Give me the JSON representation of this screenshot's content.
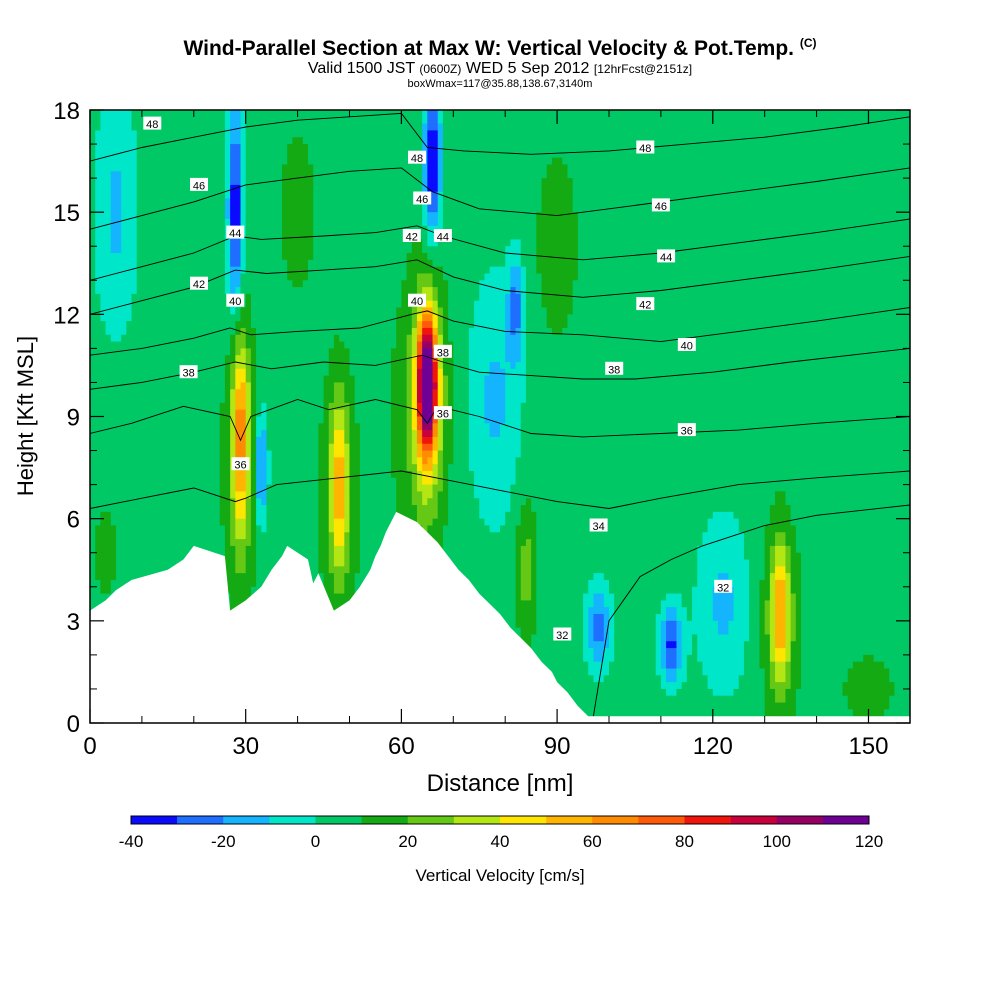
{
  "title": {
    "main": "Wind-Parallel Section at Max W: Vertical Velocity & Pot.Temp.",
    "mark": "(C)",
    "valid": "Valid 1500 JST",
    "z": "(0600Z)",
    "date": "WED 5 Sep 2012",
    "fcst": "[12hrFcst@2151z]",
    "box": "boxWmax=117@35.88,138.67,3140m"
  },
  "chart_data": {
    "type": "heatmap",
    "xlabel": "Distance [nm]",
    "ylabel": "Height [Kft MSL]",
    "xlim": [
      0,
      158
    ],
    "ylim": [
      0,
      18
    ],
    "x_ticks": [
      "0",
      "30",
      "60",
      "90",
      "120",
      "150"
    ],
    "y_ticks": [
      "0",
      "3",
      "6",
      "9",
      "12",
      "15",
      "18"
    ],
    "colorbar": {
      "label": "Vertical Velocity [cm/s]",
      "levels": [
        -40,
        -30,
        -20,
        -10,
        0,
        10,
        20,
        30,
        40,
        50,
        60,
        70,
        80,
        90,
        100,
        110,
        120
      ],
      "tick_labels": [
        "-40",
        "-20",
        "0",
        "20",
        "40",
        "60",
        "80",
        "100",
        "120"
      ],
      "colors": [
        "#0a0aff",
        "#1e6eff",
        "#14b4ff",
        "#00e6c8",
        "#00c864",
        "#14aa14",
        "#64c814",
        "#b4e614",
        "#ffe600",
        "#ffb400",
        "#ff8c00",
        "#ff5a0a",
        "#f0140a",
        "#c8003c",
        "#960064",
        "#6e0096"
      ]
    },
    "background_value": 5,
    "velocity_features": [
      {
        "x": 29,
        "y": 8.5,
        "sx": 1.6,
        "sy": 2.8,
        "value": 55
      },
      {
        "x": 29,
        "y": 7.5,
        "sx": 3.5,
        "sy": 4.5,
        "value": 20
      },
      {
        "x": 48,
        "y": 7,
        "sx": 1.8,
        "sy": 2.5,
        "value": 45
      },
      {
        "x": 48,
        "y": 6.5,
        "sx": 4,
        "sy": 4,
        "value": 18
      },
      {
        "x": 65,
        "y": 10,
        "sx": 1.7,
        "sy": 1.8,
        "value": 110
      },
      {
        "x": 65,
        "y": 9.5,
        "sx": 3,
        "sy": 3.2,
        "value": 45
      },
      {
        "x": 63,
        "y": 9,
        "sx": 6,
        "sy": 4.5,
        "value": 15
      },
      {
        "x": 133,
        "y": 3.2,
        "sx": 1.8,
        "sy": 2,
        "value": 48
      },
      {
        "x": 133,
        "y": 3,
        "sx": 4,
        "sy": 3,
        "value": 20
      },
      {
        "x": 84,
        "y": 4.5,
        "sx": 2,
        "sy": 2,
        "value": 25
      },
      {
        "x": 28,
        "y": 15,
        "sx": 1.5,
        "sy": 3,
        "value": -38
      },
      {
        "x": 33,
        "y": 7.5,
        "sx": 1.2,
        "sy": 1.6,
        "value": -28
      },
      {
        "x": 66,
        "y": 16.5,
        "sx": 1.6,
        "sy": 2.2,
        "value": -42
      },
      {
        "x": 112,
        "y": 2.3,
        "sx": 2.2,
        "sy": 1.1,
        "value": -32
      },
      {
        "x": 98,
        "y": 2.8,
        "sx": 2.5,
        "sy": 1.2,
        "value": -25
      },
      {
        "x": 82,
        "y": 12.2,
        "sx": 1.5,
        "sy": 1.5,
        "value": -22
      },
      {
        "x": 5,
        "y": 15,
        "sx": 4,
        "sy": 3.5,
        "value": -12
      },
      {
        "x": 122,
        "y": 3.5,
        "sx": 5,
        "sy": 2.5,
        "value": -12
      },
      {
        "x": 78,
        "y": 9.5,
        "sx": 5,
        "sy": 3.5,
        "value": -12
      },
      {
        "x": 90,
        "y": 14,
        "sx": 5,
        "sy": 3.5,
        "value": 14
      },
      {
        "x": 40,
        "y": 15,
        "sx": 4,
        "sy": 3,
        "value": 14
      },
      {
        "x": 150,
        "y": 1,
        "sx": 6,
        "sy": 1.2,
        "value": 14
      },
      {
        "x": 3,
        "y": 5,
        "sx": 3,
        "sy": 1.5,
        "value": 14
      }
    ],
    "terrain": [
      [
        0,
        3.3
      ],
      [
        3,
        3.6
      ],
      [
        5,
        3.9
      ],
      [
        8,
        4.2
      ],
      [
        15,
        4.5
      ],
      [
        18,
        4.8
      ],
      [
        20,
        5.2
      ],
      [
        26,
        4.9
      ],
      [
        27,
        3.3
      ],
      [
        30,
        3.6
      ],
      [
        33,
        4.0
      ],
      [
        35,
        4.5
      ],
      [
        37,
        4.9
      ],
      [
        38,
        5.2
      ],
      [
        42,
        4.8
      ],
      [
        43,
        4.1
      ],
      [
        44,
        4.4
      ],
      [
        47,
        3.3
      ],
      [
        50,
        3.6
      ],
      [
        52,
        4.0
      ],
      [
        54,
        4.5
      ],
      [
        55,
        4.9
      ],
      [
        56,
        5.2
      ],
      [
        57,
        5.6
      ],
      [
        59,
        6.2
      ],
      [
        63,
        5.9
      ],
      [
        65,
        5.6
      ],
      [
        67,
        5.3
      ],
      [
        69,
        4.9
      ],
      [
        71,
        4.5
      ],
      [
        73,
        4.2
      ],
      [
        75,
        3.8
      ],
      [
        77,
        3.5
      ],
      [
        79,
        3.2
      ],
      [
        81,
        2.8
      ],
      [
        83,
        2.5
      ],
      [
        85,
        2.2
      ],
      [
        87,
        1.8
      ],
      [
        89,
        1.5
      ],
      [
        90,
        1.2
      ],
      [
        92,
        0.9
      ],
      [
        94,
        0.5
      ],
      [
        96,
        0.2
      ],
      [
        158,
        0.2
      ]
    ],
    "theta_contours": [
      {
        "label": "32",
        "points": [
          [
            97,
            0.2
          ],
          [
            100,
            3
          ],
          [
            106,
            4.3
          ],
          [
            112,
            4.8
          ],
          [
            118,
            5.2
          ],
          [
            124,
            5.5
          ],
          [
            130,
            5.8
          ],
          [
            140,
            6.1
          ],
          [
            158,
            6.4
          ]
        ]
      },
      {
        "label": "34",
        "points": [
          [
            0,
            6.3
          ],
          [
            10,
            6.6
          ],
          [
            20,
            6.9
          ],
          [
            28,
            6.5
          ],
          [
            30,
            6.6
          ],
          [
            36,
            7.0
          ],
          [
            48,
            7.2
          ],
          [
            60,
            7.4
          ],
          [
            70,
            7.1
          ],
          [
            80,
            6.8
          ],
          [
            90,
            6.5
          ],
          [
            100,
            6.3
          ],
          [
            110,
            6.6
          ],
          [
            125,
            7.0
          ],
          [
            140,
            7.2
          ],
          [
            158,
            7.4
          ]
        ]
      },
      {
        "label": "36",
        "points": [
          [
            0,
            8.5
          ],
          [
            8,
            8.8
          ],
          [
            18,
            9.3
          ],
          [
            27,
            9.0
          ],
          [
            29,
            8.3
          ],
          [
            31,
            9.0
          ],
          [
            40,
            9.5
          ],
          [
            46,
            9.2
          ],
          [
            55,
            9.5
          ],
          [
            63,
            9.2
          ],
          [
            65,
            8.8
          ],
          [
            67,
            9.3
          ],
          [
            75,
            9.0
          ],
          [
            85,
            8.5
          ],
          [
            95,
            8.4
          ],
          [
            110,
            8.5
          ],
          [
            125,
            8.6
          ],
          [
            140,
            8.8
          ],
          [
            158,
            9.0
          ]
        ]
      },
      {
        "label": "38",
        "points": [
          [
            0,
            9.8
          ],
          [
            10,
            10.0
          ],
          [
            20,
            10.3
          ],
          [
            28,
            10.6
          ],
          [
            35,
            10.4
          ],
          [
            45,
            10.6
          ],
          [
            55,
            10.5
          ],
          [
            64,
            10.8
          ],
          [
            68,
            10.6
          ],
          [
            75,
            10.3
          ],
          [
            85,
            10.2
          ],
          [
            95,
            10.1
          ],
          [
            105,
            10.1
          ],
          [
            120,
            10.3
          ],
          [
            135,
            10.6
          ],
          [
            158,
            11.0
          ]
        ]
      },
      {
        "label": "40",
        "points": [
          [
            0,
            10.8
          ],
          [
            10,
            11.0
          ],
          [
            20,
            11.3
          ],
          [
            27,
            11.6
          ],
          [
            31,
            11.4
          ],
          [
            40,
            11.5
          ],
          [
            52,
            11.6
          ],
          [
            62,
            12.0
          ],
          [
            65,
            12.1
          ],
          [
            70,
            11.8
          ],
          [
            80,
            11.5
          ],
          [
            95,
            11.4
          ],
          [
            110,
            11.2
          ],
          [
            125,
            11.5
          ],
          [
            140,
            11.8
          ],
          [
            158,
            12.2
          ]
        ]
      },
      {
        "label": "42",
        "points": [
          [
            0,
            12.0
          ],
          [
            10,
            12.4
          ],
          [
            20,
            12.8
          ],
          [
            28,
            13.3
          ],
          [
            34,
            13.2
          ],
          [
            45,
            13.3
          ],
          [
            55,
            13.4
          ],
          [
            63,
            13.6
          ],
          [
            70,
            13.1
          ],
          [
            80,
            12.7
          ],
          [
            95,
            12.5
          ],
          [
            110,
            12.7
          ],
          [
            125,
            13.0
          ],
          [
            140,
            13.3
          ],
          [
            158,
            13.7
          ]
        ]
      },
      {
        "label": "44",
        "points": [
          [
            0,
            13.0
          ],
          [
            10,
            13.4
          ],
          [
            20,
            13.8
          ],
          [
            28,
            14.3
          ],
          [
            33,
            14.2
          ],
          [
            45,
            14.3
          ],
          [
            55,
            14.4
          ],
          [
            63,
            14.6
          ],
          [
            68,
            14.3
          ],
          [
            80,
            13.8
          ],
          [
            95,
            13.6
          ],
          [
            110,
            13.8
          ],
          [
            125,
            14.1
          ],
          [
            140,
            14.4
          ],
          [
            158,
            14.8
          ]
        ]
      },
      {
        "label": "46",
        "points": [
          [
            0,
            14.5
          ],
          [
            10,
            14.9
          ],
          [
            20,
            15.3
          ],
          [
            30,
            15.8
          ],
          [
            40,
            16.0
          ],
          [
            50,
            16.2
          ],
          [
            60,
            16.3
          ],
          [
            66,
            15.6
          ],
          [
            75,
            15.1
          ],
          [
            90,
            14.9
          ],
          [
            105,
            15.2
          ],
          [
            120,
            15.5
          ],
          [
            140,
            15.9
          ],
          [
            158,
            16.3
          ]
        ]
      },
      {
        "label": "48",
        "points": [
          [
            0,
            16.5
          ],
          [
            10,
            16.9
          ],
          [
            20,
            17.2
          ],
          [
            30,
            17.5
          ],
          [
            40,
            17.7
          ],
          [
            50,
            17.8
          ],
          [
            60,
            17.9
          ],
          [
            65,
            16.9
          ],
          [
            72,
            16.8
          ],
          [
            85,
            16.7
          ],
          [
            100,
            16.8
          ],
          [
            115,
            17.0
          ],
          [
            130,
            17.2
          ],
          [
            145,
            17.5
          ],
          [
            158,
            17.8
          ]
        ]
      }
    ],
    "contour_labels": [
      {
        "label": "48",
        "x": 12,
        "y": 17.6
      },
      {
        "label": "46",
        "x": 21,
        "y": 15.8
      },
      {
        "label": "44",
        "x": 28,
        "y": 14.4
      },
      {
        "label": "42",
        "x": 21,
        "y": 12.9
      },
      {
        "label": "40",
        "x": 28,
        "y": 12.4
      },
      {
        "label": "38",
        "x": 19,
        "y": 10.3
      },
      {
        "label": "36",
        "x": 29,
        "y": 7.6
      },
      {
        "label": "48",
        "x": 63,
        "y": 16.6
      },
      {
        "label": "46",
        "x": 64,
        "y": 15.4
      },
      {
        "label": "42",
        "x": 62,
        "y": 14.3
      },
      {
        "label": "44",
        "x": 68,
        "y": 14.3
      },
      {
        "label": "40",
        "x": 63,
        "y": 12.4
      },
      {
        "label": "38",
        "x": 68,
        "y": 10.9
      },
      {
        "label": "36",
        "x": 68,
        "y": 9.1
      },
      {
        "label": "48",
        "x": 107,
        "y": 16.9
      },
      {
        "label": "46",
        "x": 110,
        "y": 15.2
      },
      {
        "label": "44",
        "x": 111,
        "y": 13.7
      },
      {
        "label": "42",
        "x": 107,
        "y": 12.3
      },
      {
        "label": "40",
        "x": 115,
        "y": 11.1
      },
      {
        "label": "38",
        "x": 101,
        "y": 10.4
      },
      {
        "label": "36",
        "x": 115,
        "y": 8.6
      },
      {
        "label": "34",
        "x": 98,
        "y": 5.8
      },
      {
        "label": "32",
        "x": 91,
        "y": 2.6
      },
      {
        "label": "32",
        "x": 122,
        "y": 4.0
      }
    ]
  }
}
